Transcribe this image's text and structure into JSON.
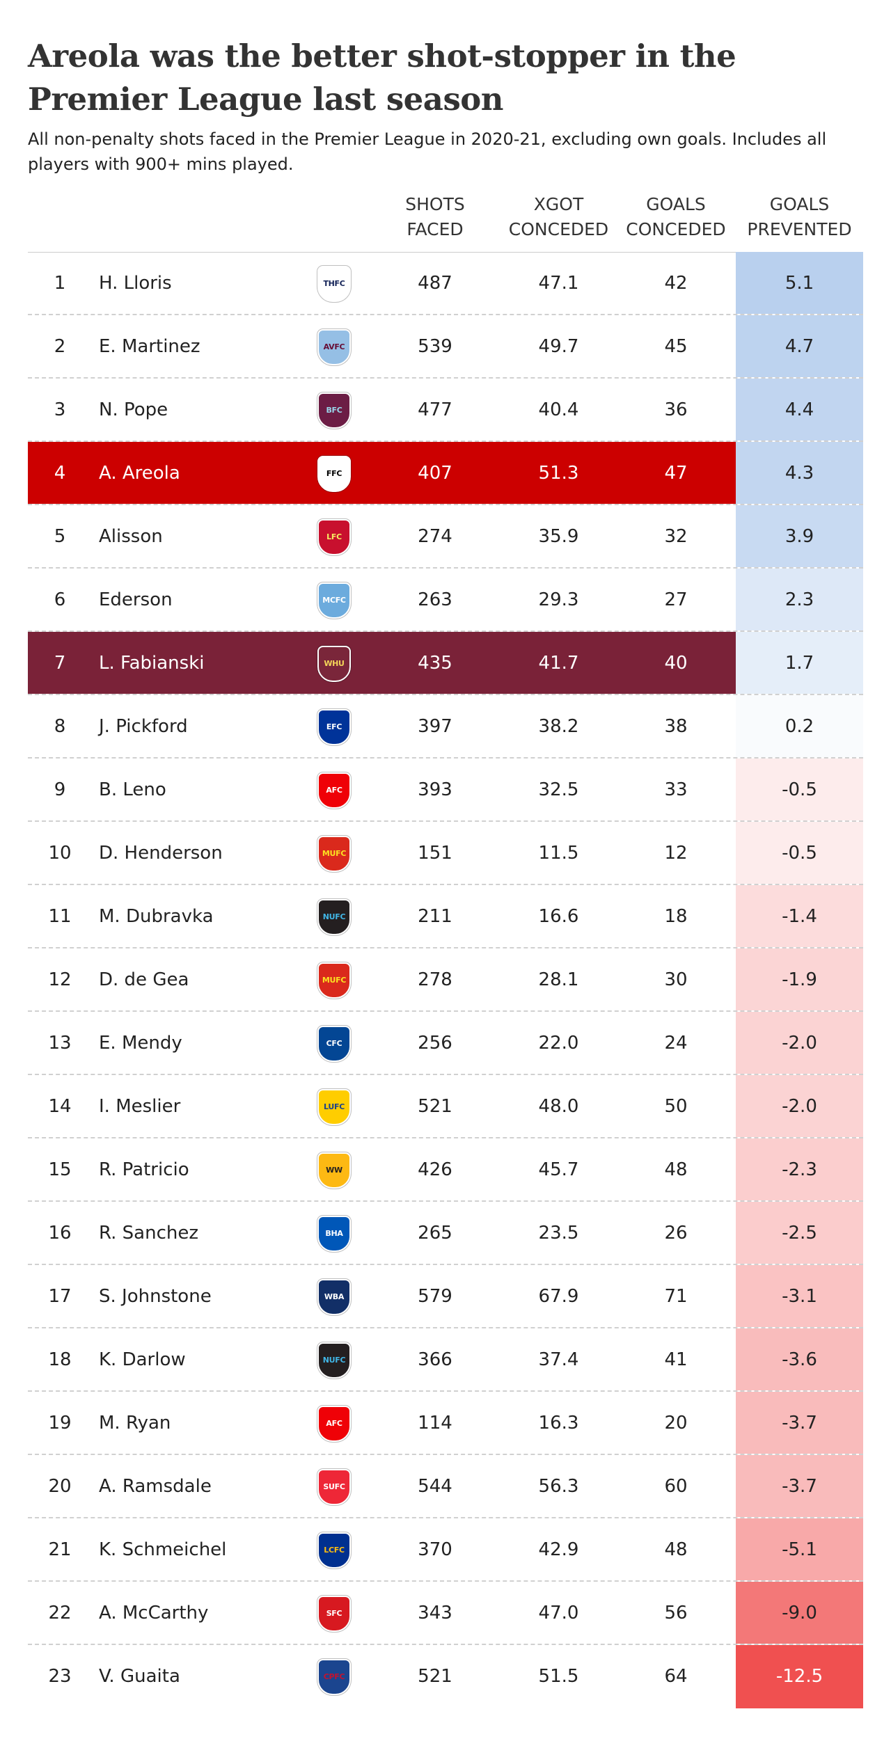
{
  "title": "Areola was the better shot-stopper in the Premier League last season",
  "subtitle": "All non-penalty shots faced in the Premier League in 2020-21, excluding own goals. Includes all players with 900+ mins played.",
  "columns": {
    "shots_faced": "SHOTS\nFACED",
    "xgot_conceded": "XGOT\nCONCEDED",
    "goals_conceded": "GOALS\nCONCEDED",
    "goals_prevented": "GOALS\nPREVENTED"
  },
  "colors": {
    "areola_highlight": "#cc0000",
    "fabianski_highlight": "#7a2238",
    "positive_scale": "#b9d0ee",
    "negative_scale": "#f05050"
  },
  "rows": [
    {
      "rank": "1",
      "player": "H. Lloris",
      "club_icon": "tottenham-crest-icon",
      "shots_faced": "487",
      "xgot_conceded": "47.1",
      "goals_conceded": "42",
      "goals_prevented": "5.1",
      "highlight": null
    },
    {
      "rank": "2",
      "player": "E. Martinez",
      "club_icon": "aston-villa-crest-icon",
      "shots_faced": "539",
      "xgot_conceded": "49.7",
      "goals_conceded": "45",
      "goals_prevented": "4.7",
      "highlight": null
    },
    {
      "rank": "3",
      "player": "N. Pope",
      "club_icon": "burnley-crest-icon",
      "shots_faced": "477",
      "xgot_conceded": "40.4",
      "goals_conceded": "36",
      "goals_prevented": "4.4",
      "highlight": null
    },
    {
      "rank": "4",
      "player": "A. Areola",
      "club_icon": "fulham-crest-icon",
      "shots_faced": "407",
      "xgot_conceded": "51.3",
      "goals_conceded": "47",
      "goals_prevented": "4.3",
      "highlight": "#cc0000"
    },
    {
      "rank": "5",
      "player": "Alisson",
      "club_icon": "liverpool-crest-icon",
      "shots_faced": "274",
      "xgot_conceded": "35.9",
      "goals_conceded": "32",
      "goals_prevented": "3.9",
      "highlight": null
    },
    {
      "rank": "6",
      "player": "Ederson",
      "club_icon": "manchester-city-crest-icon",
      "shots_faced": "263",
      "xgot_conceded": "29.3",
      "goals_conceded": "27",
      "goals_prevented": "2.3",
      "highlight": null
    },
    {
      "rank": "7",
      "player": "L. Fabianski",
      "club_icon": "west-ham-crest-icon",
      "shots_faced": "435",
      "xgot_conceded": "41.7",
      "goals_conceded": "40",
      "goals_prevented": "1.7",
      "highlight": "#7a2238"
    },
    {
      "rank": "8",
      "player": "J. Pickford",
      "club_icon": "everton-crest-icon",
      "shots_faced": "397",
      "xgot_conceded": "38.2",
      "goals_conceded": "38",
      "goals_prevented": "0.2",
      "highlight": null
    },
    {
      "rank": "9",
      "player": "B. Leno",
      "club_icon": "arsenal-crest-icon",
      "shots_faced": "393",
      "xgot_conceded": "32.5",
      "goals_conceded": "33",
      "goals_prevented": "-0.5",
      "highlight": null
    },
    {
      "rank": "10",
      "player": "D. Henderson",
      "club_icon": "manchester-united-crest-icon",
      "shots_faced": "151",
      "xgot_conceded": "11.5",
      "goals_conceded": "12",
      "goals_prevented": "-0.5",
      "highlight": null
    },
    {
      "rank": "11",
      "player": "M. Dubravka",
      "club_icon": "newcastle-crest-icon",
      "shots_faced": "211",
      "xgot_conceded": "16.6",
      "goals_conceded": "18",
      "goals_prevented": "-1.4",
      "highlight": null
    },
    {
      "rank": "12",
      "player": "D. de Gea",
      "club_icon": "manchester-united-crest-icon",
      "shots_faced": "278",
      "xgot_conceded": "28.1",
      "goals_conceded": "30",
      "goals_prevented": "-1.9",
      "highlight": null
    },
    {
      "rank": "13",
      "player": "E. Mendy",
      "club_icon": "chelsea-crest-icon",
      "shots_faced": "256",
      "xgot_conceded": "22.0",
      "goals_conceded": "24",
      "goals_prevented": "-2.0",
      "highlight": null
    },
    {
      "rank": "14",
      "player": "I. Meslier",
      "club_icon": "leeds-crest-icon",
      "shots_faced": "521",
      "xgot_conceded": "48.0",
      "goals_conceded": "50",
      "goals_prevented": "-2.0",
      "highlight": null
    },
    {
      "rank": "15",
      "player": "R. Patricio",
      "club_icon": "wolves-crest-icon",
      "shots_faced": "426",
      "xgot_conceded": "45.7",
      "goals_conceded": "48",
      "goals_prevented": "-2.3",
      "highlight": null
    },
    {
      "rank": "16",
      "player": "R. Sanchez",
      "club_icon": "brighton-crest-icon",
      "shots_faced": "265",
      "xgot_conceded": "23.5",
      "goals_conceded": "26",
      "goals_prevented": "-2.5",
      "highlight": null
    },
    {
      "rank": "17",
      "player": "S. Johnstone",
      "club_icon": "west-brom-crest-icon",
      "shots_faced": "579",
      "xgot_conceded": "67.9",
      "goals_conceded": "71",
      "goals_prevented": "-3.1",
      "highlight": null
    },
    {
      "rank": "18",
      "player": "K. Darlow",
      "club_icon": "newcastle-crest-icon",
      "shots_faced": "366",
      "xgot_conceded": "37.4",
      "goals_conceded": "41",
      "goals_prevented": "-3.6",
      "highlight": null
    },
    {
      "rank": "19",
      "player": "M. Ryan",
      "club_icon": "arsenal-crest-icon",
      "shots_faced": "114",
      "xgot_conceded": "16.3",
      "goals_conceded": "20",
      "goals_prevented": "-3.7",
      "highlight": null
    },
    {
      "rank": "20",
      "player": "A. Ramsdale",
      "club_icon": "sheffield-united-crest-icon",
      "shots_faced": "544",
      "xgot_conceded": "56.3",
      "goals_conceded": "60",
      "goals_prevented": "-3.7",
      "highlight": null
    },
    {
      "rank": "21",
      "player": "K. Schmeichel",
      "club_icon": "leicester-crest-icon",
      "shots_faced": "370",
      "xgot_conceded": "42.9",
      "goals_conceded": "48",
      "goals_prevented": "-5.1",
      "highlight": null
    },
    {
      "rank": "22",
      "player": "A. McCarthy",
      "club_icon": "southampton-crest-icon",
      "shots_faced": "343",
      "xgot_conceded": "47.0",
      "goals_conceded": "56",
      "goals_prevented": "-9.0",
      "highlight": null
    },
    {
      "rank": "23",
      "player": "V. Guaita",
      "club_icon": "crystal-palace-crest-icon",
      "shots_faced": "521",
      "xgot_conceded": "51.5",
      "goals_conceded": "64",
      "goals_prevented": "-12.5",
      "highlight": null
    }
  ]
}
